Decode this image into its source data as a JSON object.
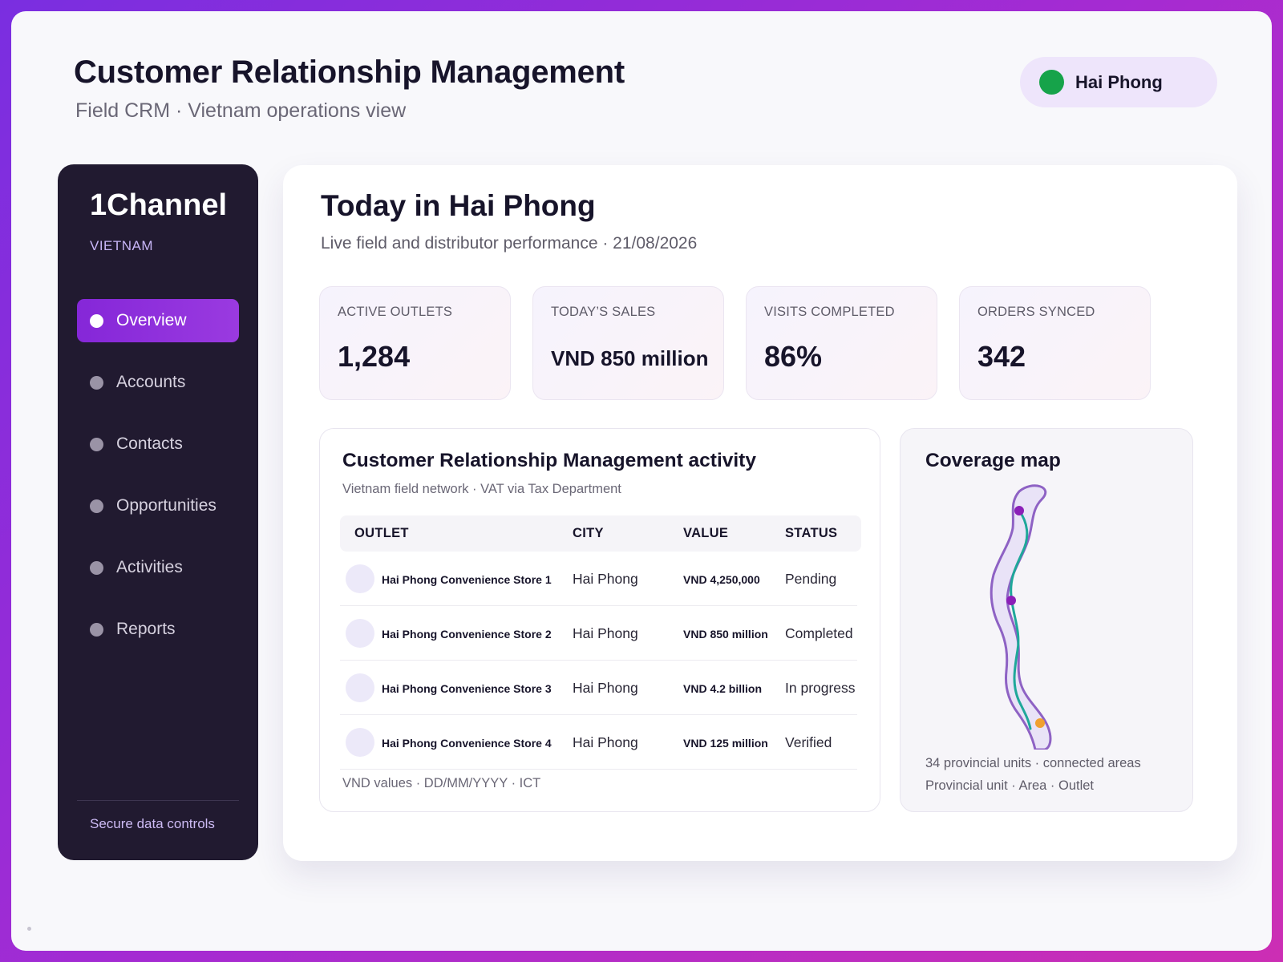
{
  "header": {
    "title": "Customer Relationship Management",
    "subtitle": "Field CRM · Vietnam operations view",
    "region": "Hai Phong",
    "region_color": "#16a34a"
  },
  "sidebar": {
    "brand": "1Channel",
    "country": "VIETNAM",
    "items": [
      {
        "label": "Overview",
        "active": true
      },
      {
        "label": "Accounts",
        "active": false
      },
      {
        "label": "Contacts",
        "active": false
      },
      {
        "label": "Opportunities",
        "active": false
      },
      {
        "label": "Activities",
        "active": false
      },
      {
        "label": "Reports",
        "active": false
      }
    ],
    "footer": "Secure data controls",
    "accent": "#8b2be0"
  },
  "main": {
    "title": "Today in Hai Phong",
    "subtitle": "Live field and distributor performance · 21/08/2026",
    "kpis": [
      {
        "label": "ACTIVE OUTLETS",
        "value": "1,284"
      },
      {
        "label": "TODAY’S SALES",
        "value": "VND 850 million"
      },
      {
        "label": "VISITS COMPLETED",
        "value": "86%"
      },
      {
        "label": "ORDERS SYNCED",
        "value": "342"
      }
    ]
  },
  "activity": {
    "title": "Customer Relationship Management activity",
    "subtitle": "Vietnam field network · VAT via Tax Department",
    "columns": [
      "OUTLET",
      "CITY",
      "VALUE",
      "STATUS"
    ],
    "rows": [
      {
        "outlet": "Hai Phong Convenience Store 1",
        "city": "Hai Phong",
        "value": "VND 4,250,000",
        "status": "Pending"
      },
      {
        "outlet": "Hai Phong Convenience Store 2",
        "city": "Hai Phong",
        "value": "VND 850 million",
        "status": "Completed"
      },
      {
        "outlet": "Hai Phong Convenience Store 3",
        "city": "Hai Phong",
        "value": "VND 4.2 billion",
        "status": "In progress"
      },
      {
        "outlet": "Hai Phong Convenience Store 4",
        "city": "Hai Phong",
        "value": "VND 125 million",
        "status": "Verified"
      }
    ],
    "footer": "VND values · DD/MM/YYYY · ICT"
  },
  "coverage": {
    "title": "Coverage map",
    "line1": "34 provincial units · connected areas",
    "line2": "Provincial unit · Area · Outlet",
    "outline_color": "#8e62c4",
    "route_color": "#1fa89a",
    "marker_colors": [
      "#8b1fb8",
      "#8b1fb8",
      "#f0a030"
    ]
  }
}
